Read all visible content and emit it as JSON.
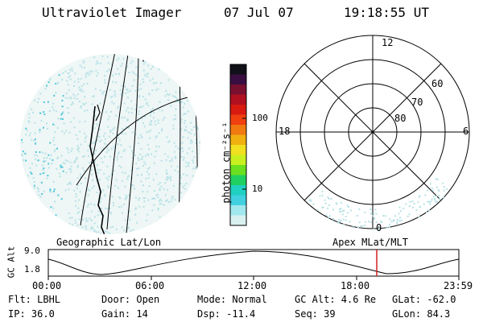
{
  "header": {
    "title": "Ultraviolet Imager",
    "date": "07 Jul 07",
    "time": "19:18:55 UT"
  },
  "colorbar": {
    "unit_label": "photon cm⁻²s⁻¹",
    "ticks": [
      "100",
      "10"
    ],
    "colors": [
      "#101018",
      "#3a0e40",
      "#7a1030",
      "#b01020",
      "#d81a10",
      "#f04010",
      "#f07a10",
      "#f0b010",
      "#f0e020",
      "#c8f020",
      "#6ae020",
      "#20d060",
      "#20d0c0",
      "#40d0e0",
      "#a0e8ee",
      "#d8f0f0"
    ]
  },
  "polar": {
    "labels": [
      "12",
      "18",
      "6",
      "0"
    ],
    "lat_labels": [
      "60",
      "70",
      "80"
    ]
  },
  "altitude_plot": {
    "left_label": "Geographic Lat/Lon",
    "right_label": "Apex MLat/MLT",
    "y_title": "GC Alt",
    "y_ticks": [
      "9.0",
      "1.8"
    ],
    "x_ticks": [
      "00:00",
      "06:00",
      "12:00",
      "18:00",
      "23:59"
    ],
    "current_time_fraction": 0.8,
    "current_marker_color": "#d02020"
  },
  "info": {
    "row1": [
      "Flt: LBHL",
      "Door: Open",
      "Mode: Normal",
      "GC Alt: 4.6 Re",
      "GLat: -62.0"
    ],
    "row2": [
      "IP: 36.0",
      "Gain: 14",
      "Dsp:  -11.4",
      "Seq: 39",
      "GLon:  84.3"
    ]
  }
}
